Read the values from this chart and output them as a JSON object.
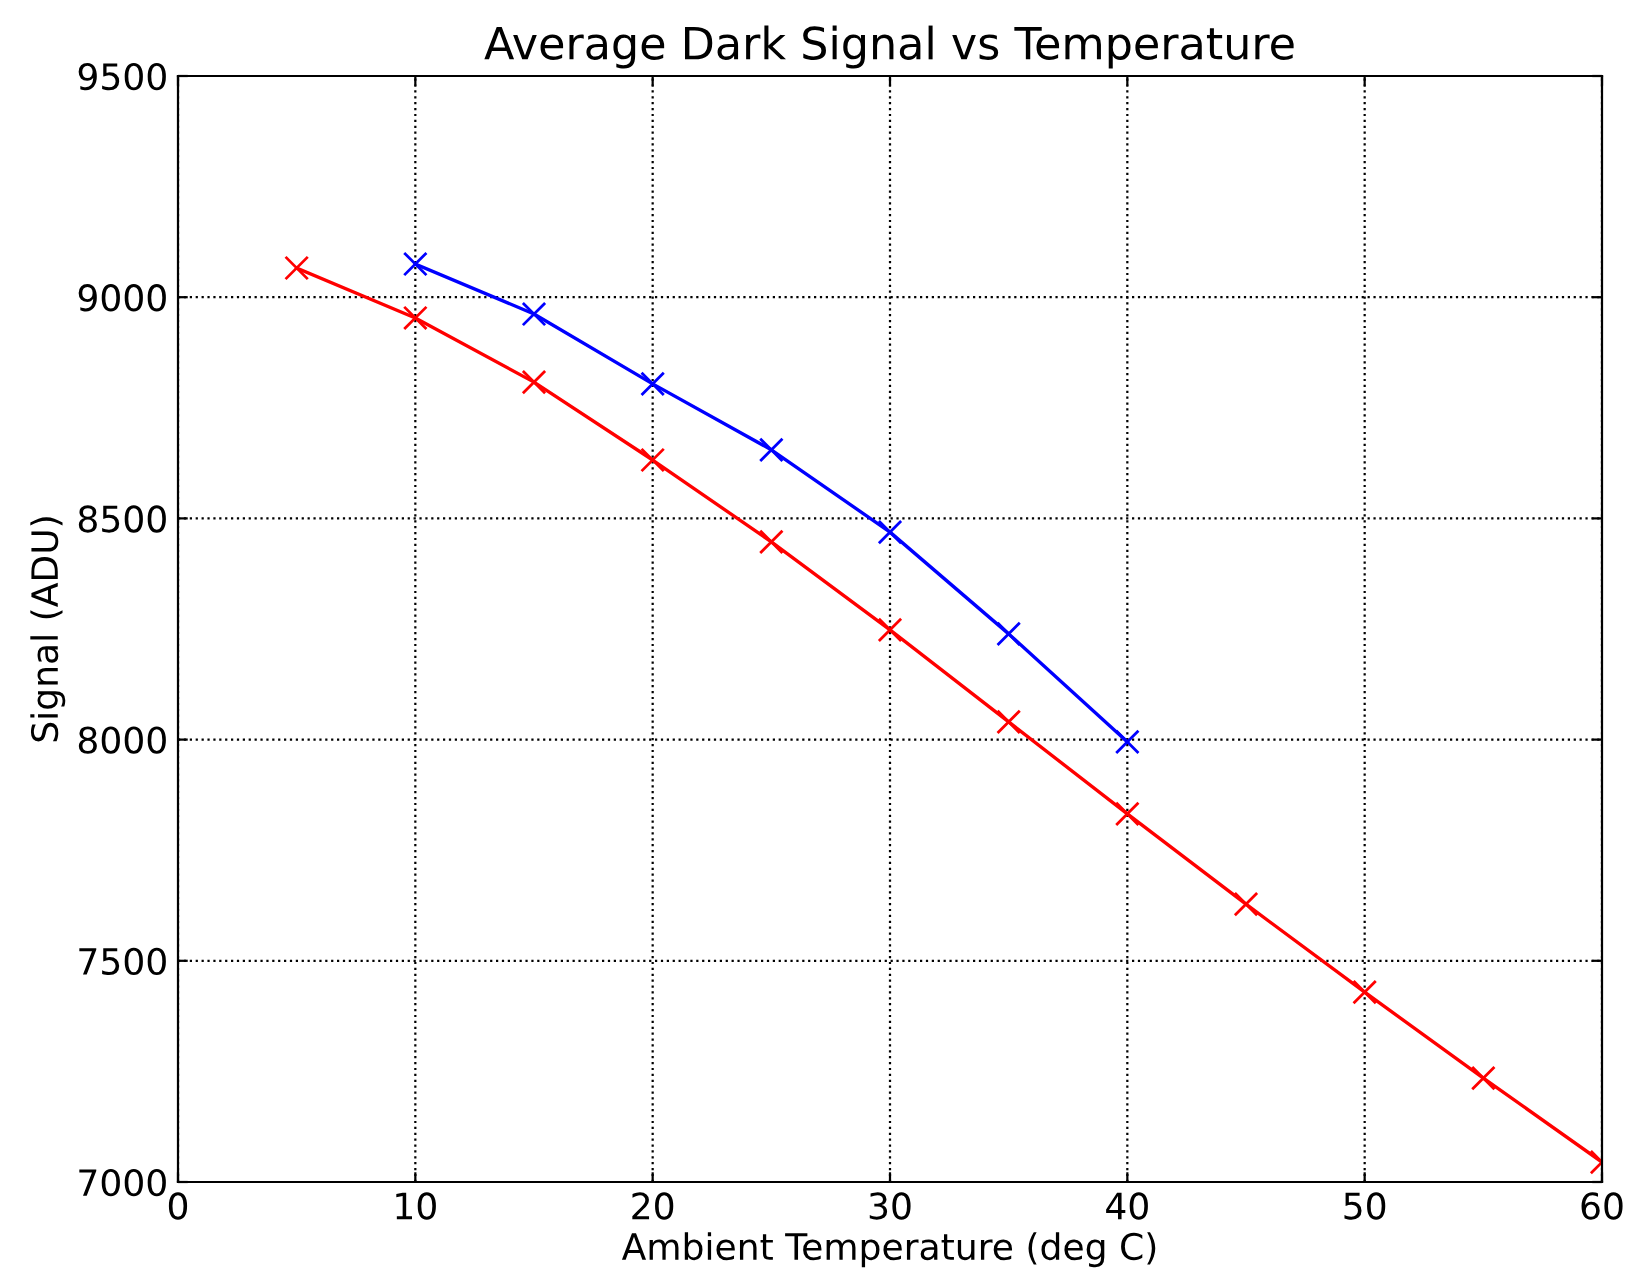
{
  "chart_data": {
    "type": "line",
    "title": "Average Dark Signal vs Temperature",
    "xlabel": "Ambient Temperature (deg C)",
    "ylabel": "Signal (ADU)",
    "series": [
      {
        "color": "#0000ff",
        "x": [
          10,
          15,
          20,
          25,
          30,
          35,
          40
        ],
        "values": [
          9075,
          8962,
          8804,
          8655,
          8469,
          8239,
          7995
        ]
      },
      {
        "color": "#ff0000",
        "x": [
          5,
          10,
          15,
          20,
          25,
          30,
          35,
          40,
          45,
          50,
          55,
          60
        ],
        "values": [
          9066,
          8953,
          8808,
          8632,
          8447,
          8248,
          8040,
          7832,
          7628,
          7429,
          7235,
          7045
        ]
      }
    ],
    "xlim": [
      0,
      60
    ],
    "xticks": [
      0,
      10,
      20,
      30,
      40,
      50,
      60
    ],
    "ylim": [
      7000,
      9500
    ],
    "yticks": [
      7000,
      7500,
      8000,
      8500,
      9000,
      9500
    ],
    "grid": true,
    "marker": "cross",
    "line_style": "solid"
  }
}
